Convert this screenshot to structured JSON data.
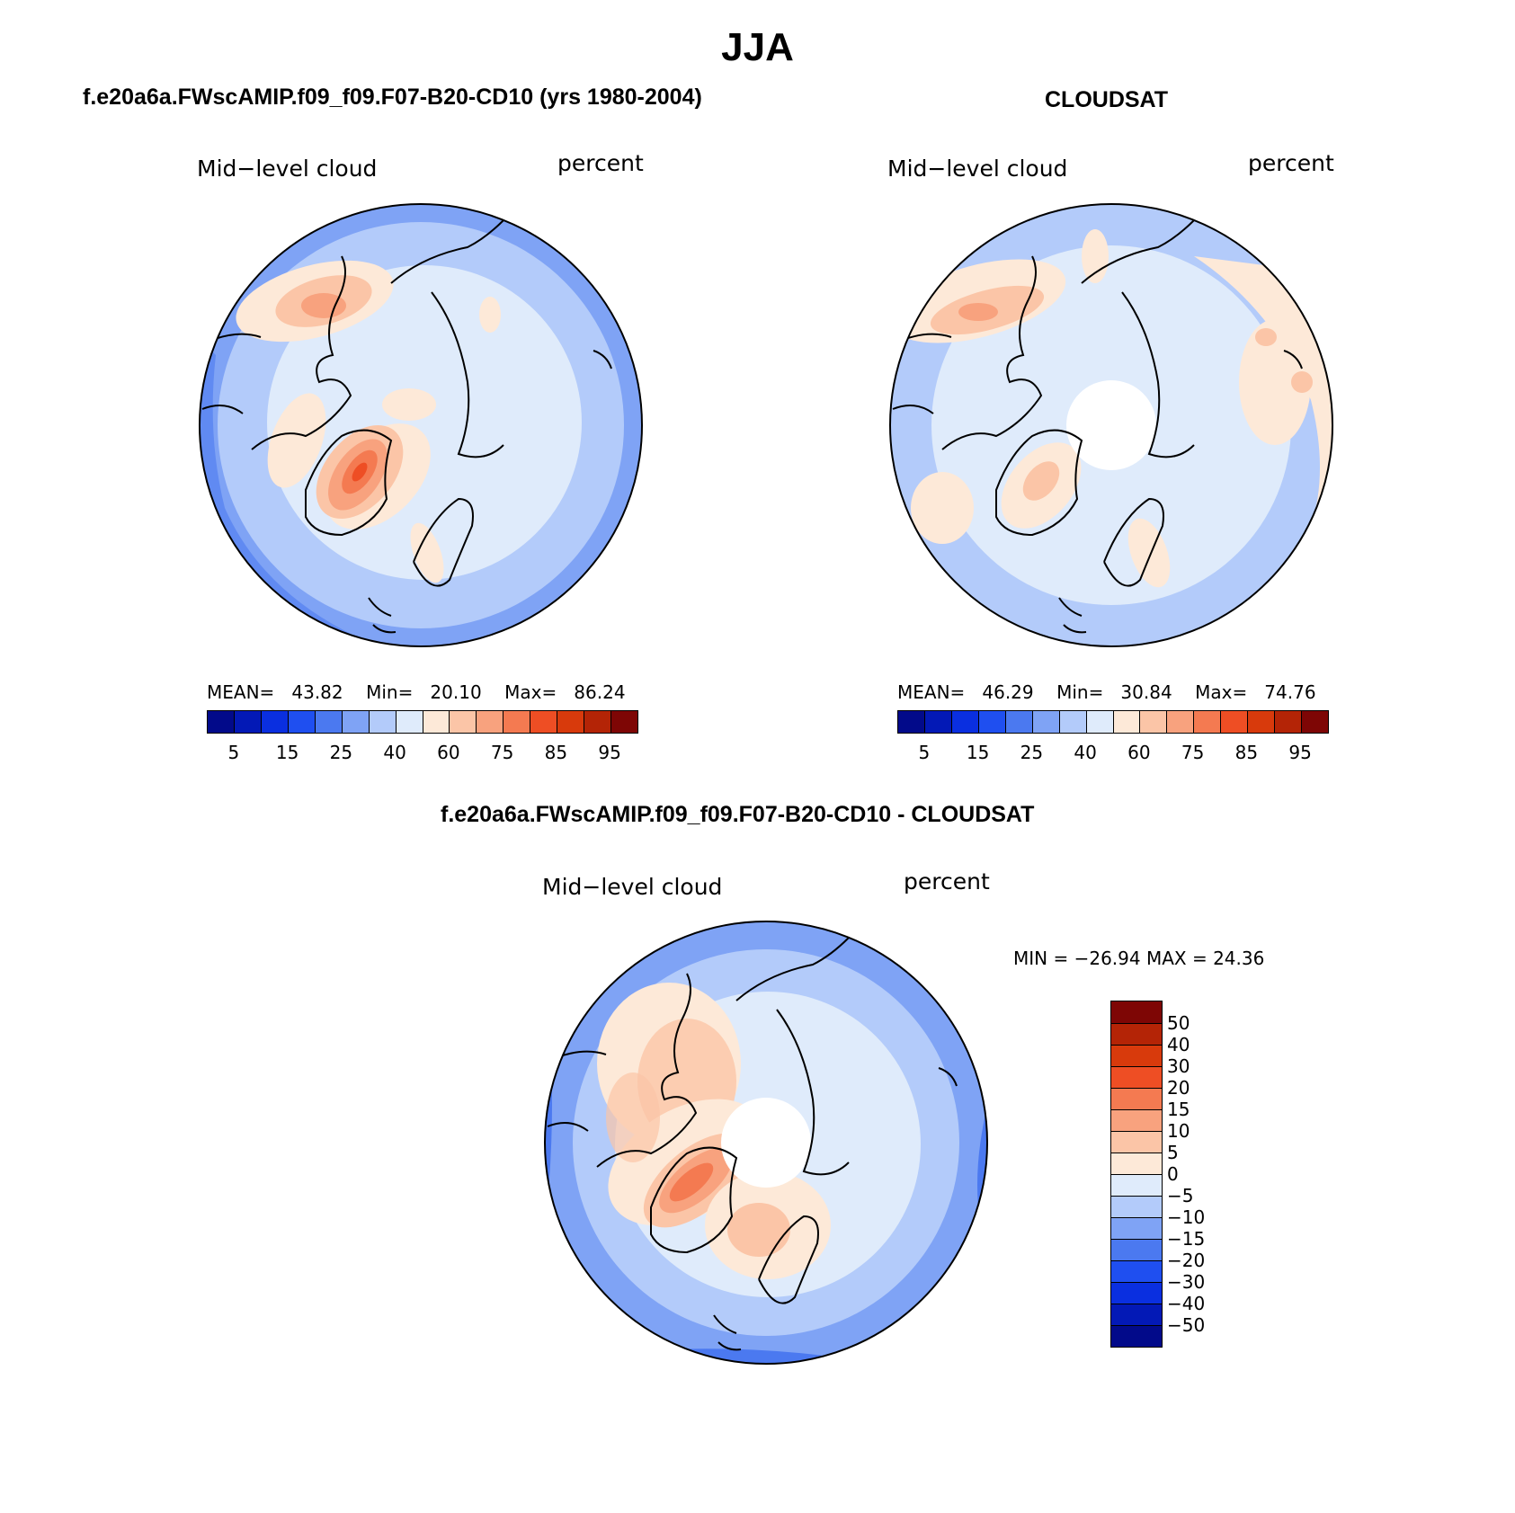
{
  "figure": {
    "title": "JJA"
  },
  "panels": {
    "model": {
      "header": "f.e20a6a.FWscAMIP.f09_f09.F07-B20-CD10 (yrs 1980-2004)",
      "variable": "Mid−level cloud",
      "units": "percent",
      "stats": {
        "mean_label": "MEAN=",
        "mean": "43.82",
        "min_label": "Min=",
        "min": "20.10",
        "max_label": "Max=",
        "max": "86.24"
      }
    },
    "obs": {
      "header": "CLOUDSAT",
      "variable": "Mid−level cloud",
      "units": "percent",
      "stats": {
        "mean_label": "MEAN=",
        "mean": "46.29",
        "min_label": "Min=",
        "min": "30.84",
        "max_label": "Max=",
        "max": "74.76"
      }
    },
    "diff": {
      "header": "f.e20a6a.FWscAMIP.f09_f09.F07-B20-CD10 - CLOUDSAT",
      "variable": "Mid−level cloud",
      "units": "percent",
      "stats_text": "MIN = −26.94 MAX =   24.36"
    }
  },
  "colorbars": {
    "abs": {
      "ticks": [
        "5",
        "15",
        "25",
        "40",
        "60",
        "75",
        "85",
        "95"
      ],
      "colors": [
        "#020a8a",
        "#0319b6",
        "#0a2fe0",
        "#1f4ff0",
        "#4b79f0",
        "#7fa3f5",
        "#b3cbfa",
        "#dfebfb",
        "#fde9d8",
        "#fbc5a7",
        "#f8a27e",
        "#f47a51",
        "#ee4e24",
        "#d83a0c",
        "#b42406",
        "#7e0605"
      ]
    },
    "diff": {
      "ticks": [
        "−50",
        "−40",
        "−30",
        "−20",
        "−15",
        "−10",
        "−5",
        "0",
        "5",
        "10",
        "15",
        "20",
        "30",
        "40",
        "50"
      ],
      "colors": [
        "#020a8a",
        "#0319b6",
        "#0a2fe0",
        "#1f4ff0",
        "#4b79f0",
        "#7fa3f5",
        "#b3cbfa",
        "#dfebfb",
        "#fde9d8",
        "#fbc5a7",
        "#f8a27e",
        "#f47a51",
        "#ee4e24",
        "#d83a0c",
        "#b42406",
        "#7e0605"
      ]
    }
  }
}
